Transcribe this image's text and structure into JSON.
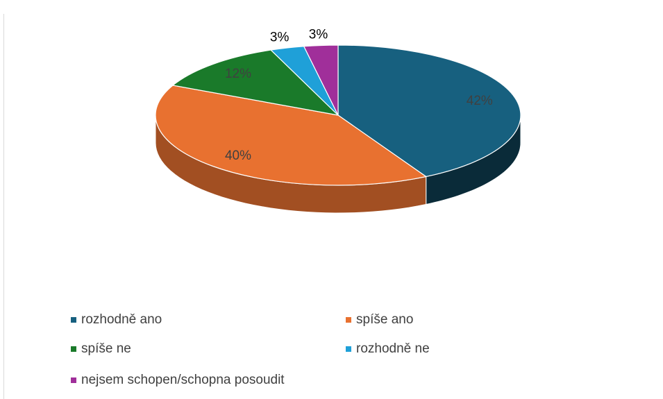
{
  "chart_data": {
    "type": "pie",
    "categories": [
      "rozhodně ano",
      "spíše ano",
      "spíše ne",
      "rozhodně ne",
      "nejsem schopen/schopna posoudit"
    ],
    "values": [
      42,
      40,
      12,
      3,
      3
    ],
    "value_labels": [
      "42%",
      "40%",
      "12%",
      "3%",
      "3%"
    ],
    "colors": [
      "#17607f",
      "#e87130",
      "#1a7a2a",
      "#1fa0d8",
      "#a02f9a"
    ],
    "legend": "bottom"
  }
}
